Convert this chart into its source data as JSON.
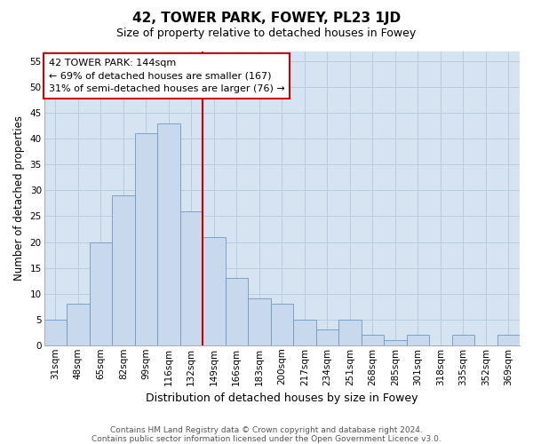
{
  "title": "42, TOWER PARK, FOWEY, PL23 1JD",
  "subtitle": "Size of property relative to detached houses in Fowey",
  "xlabel": "Distribution of detached houses by size in Fowey",
  "ylabel": "Number of detached properties",
  "bar_labels": [
    "31sqm",
    "48sqm",
    "65sqm",
    "82sqm",
    "99sqm",
    "116sqm",
    "132sqm",
    "149sqm",
    "166sqm",
    "183sqm",
    "200sqm",
    "217sqm",
    "234sqm",
    "251sqm",
    "268sqm",
    "285sqm",
    "301sqm",
    "318sqm",
    "335sqm",
    "352sqm",
    "369sqm"
  ],
  "bar_values": [
    5,
    8,
    20,
    29,
    41,
    43,
    26,
    21,
    13,
    9,
    8,
    5,
    3,
    5,
    2,
    1,
    2,
    0,
    2,
    0,
    2
  ],
  "bar_color": "#c9d9ed",
  "bar_edge_color": "#7098c0",
  "grid_color": "#b8cce0",
  "background_color": "#d6e4f2",
  "vline_x_index": 6.5,
  "vline_color": "#cc0000",
  "annotation_line1": "42 TOWER PARK: 144sqm",
  "annotation_line2": "← 69% of detached houses are smaller (167)",
  "annotation_line3": "31% of semi-detached houses are larger (76) →",
  "annotation_box_edge": "#cc0000",
  "ylim": [
    0,
    57
  ],
  "yticks": [
    0,
    5,
    10,
    15,
    20,
    25,
    30,
    35,
    40,
    45,
    50,
    55
  ],
  "footer_line1": "Contains HM Land Registry data © Crown copyright and database right 2024.",
  "footer_line2": "Contains public sector information licensed under the Open Government Licence v3.0.",
  "figsize": [
    6.0,
    5.0
  ],
  "dpi": 100,
  "fig_bg": "#ffffff",
  "title_fontsize": 11,
  "subtitle_fontsize": 9,
  "ylabel_fontsize": 8.5,
  "xlabel_fontsize": 9,
  "tick_fontsize": 7.5,
  "footer_fontsize": 6.5,
  "annot_fontsize": 8
}
